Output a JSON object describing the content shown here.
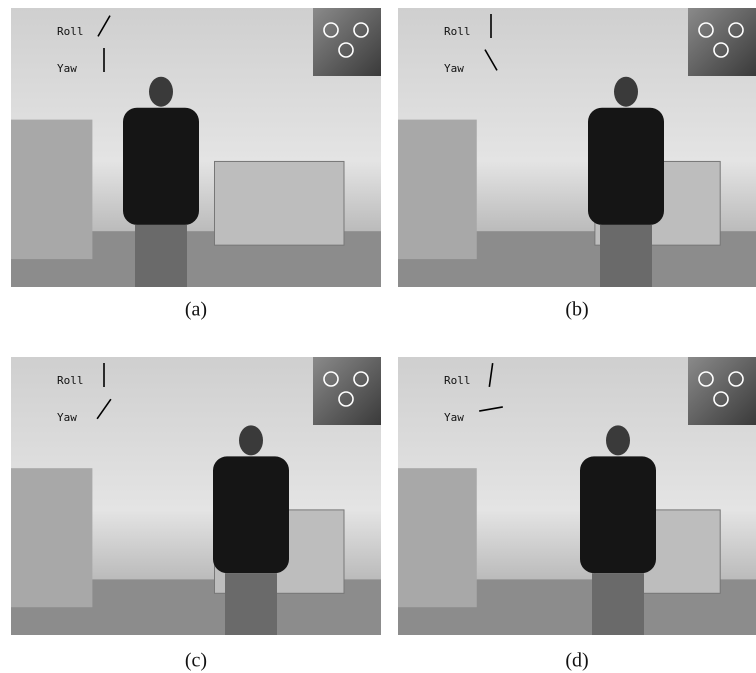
{
  "panels": [
    {
      "roll_label": "Roll",
      "yaw_label": "Yaw",
      "caption": "(a)"
    },
    {
      "roll_label": "Roll",
      "yaw_label": "Yaw",
      "caption": "(b)"
    },
    {
      "roll_label": "Roll",
      "yaw_label": "Yaw",
      "caption": "(c)"
    },
    {
      "roll_label": "Roll",
      "yaw_label": "Yaw",
      "caption": "(d)"
    }
  ]
}
